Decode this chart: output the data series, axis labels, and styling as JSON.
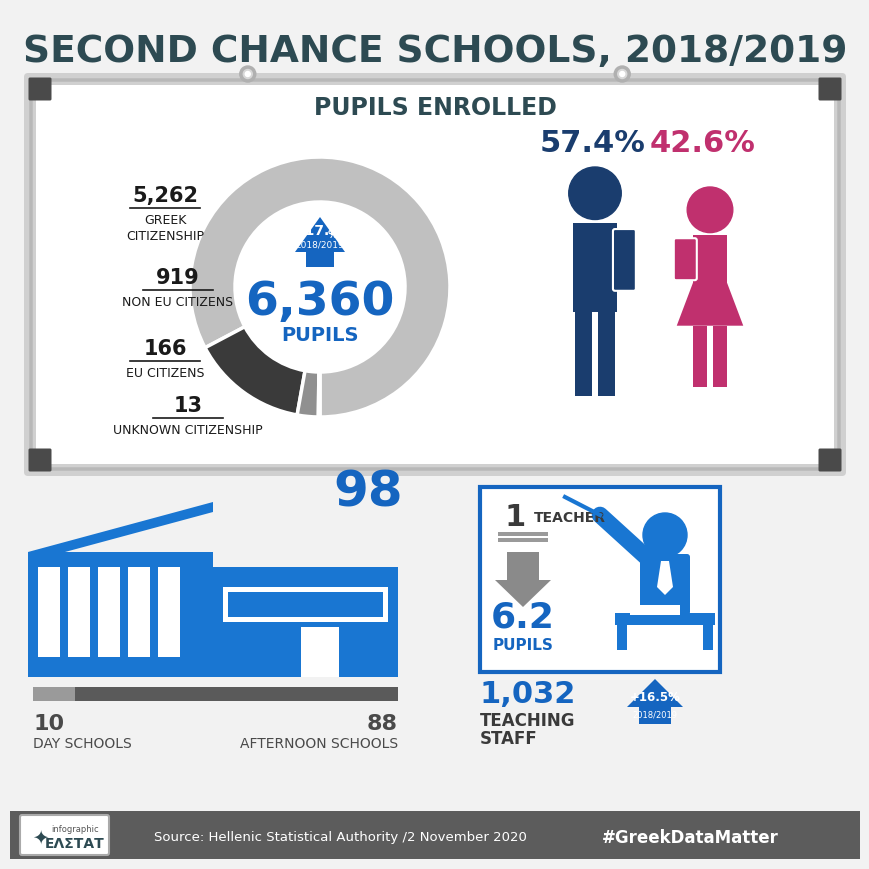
{
  "title": "SECOND CHANCE SCHOOLS, 2018/2019",
  "title_color": "#2d4a52",
  "bg_color": "#f2f2f2",
  "pupils_enrolled_label": "PUPILS ENROLLED",
  "donut_values": [
    5262,
    919,
    166,
    13
  ],
  "donut_numbers": [
    "5,262",
    "919",
    "166",
    "13"
  ],
  "donut_cat_labels": [
    "GREEK\nCITIZENSHIP",
    "NON EU CITIZENS",
    "EU CITIZENS",
    "UNKNOWN CITIZENSHIP"
  ],
  "donut_colors": [
    "#c0c0c0",
    "#3a3a3a",
    "#909090",
    "#606060"
  ],
  "total_pupils": "6,360",
  "total_pupils_label": "PUPILS",
  "increase_pct": "+17.1%",
  "increase_pct_sub": " %",
  "increase_year": "2018/2019",
  "male_pct": "57.4%",
  "female_pct": "42.6%",
  "male_color": "#1a3d6e",
  "female_color": "#c0306e",
  "total_schools": "98",
  "day_schools": "10",
  "day_label": "DAY SCHOOLS",
  "afternoon_schools": "88",
  "afternoon_label": "AFTERNOON SCHOOLS",
  "teacher_ratio": "6.2",
  "teacher_label": "TEACHER",
  "pupils_label2": "PUPILS",
  "one_label": "1",
  "teaching_staff": "1,032",
  "teaching_staff_label1": "TEACHING",
  "teaching_staff_label2": "STAFF",
  "staff_increase": "+ 16.5%",
  "staff_year": "2018/2019",
  "source": "Source: Hellenic Statistical Authority /2 November 2020",
  "hashtag": "#GreekDataMatter",
  "footer_bg": "#5c5c5c",
  "blue_color": "#1565c0",
  "mid_blue": "#1976d2",
  "dark_blue": "#1a3d6e",
  "school_blue": "#1976d2",
  "gray_dark": "#4a4a4a",
  "gray_mid": "#7a7a7a",
  "gray_light": "#b0b0b0"
}
